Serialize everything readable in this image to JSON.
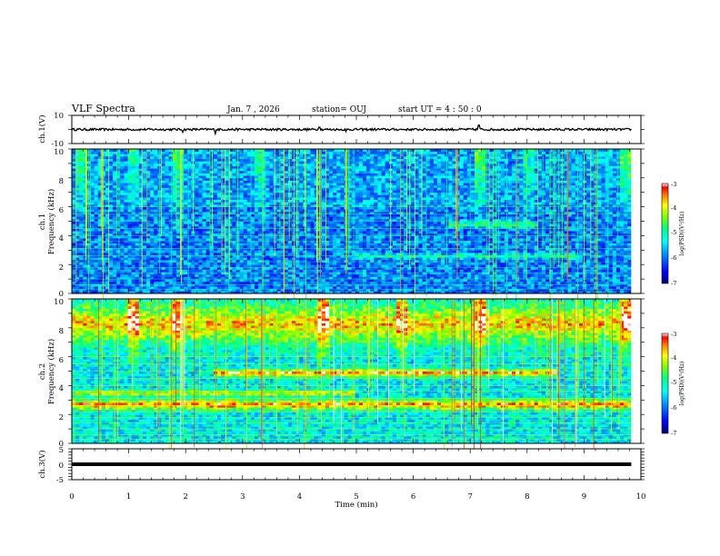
{
  "chart_data": {
    "type": "heatmap",
    "header": {
      "title": "VLF Spectra",
      "date": "Jan. 7 , 2026",
      "station": "station= OUJ",
      "start": "start UT = 4 : 50 : 0"
    },
    "xlabel": "Time (min)",
    "xlim": [
      0,
      10
    ],
    "xticks": [
      "0",
      "1",
      "2",
      "3",
      "4",
      "5",
      "6",
      "7",
      "8",
      "9",
      "10"
    ],
    "data_end_min": 9.83,
    "panels": [
      {
        "name": "ch1-waveform",
        "type": "line",
        "ylabel": "ch.1(V)",
        "ylim": [
          -10,
          10
        ],
        "yticks": [
          "10",
          "-10"
        ],
        "baseline": 0,
        "spikes": [
          {
            "t": 1.95,
            "v": -2
          },
          {
            "t": 2.52,
            "v": -3
          },
          {
            "t": 4.35,
            "v": 1.6
          },
          {
            "t": 4.82,
            "v": -1.5
          },
          {
            "t": 7.15,
            "v": 3
          }
        ]
      },
      {
        "name": "ch1-spectrogram",
        "type": "heatmap",
        "ylabel_line1": "ch.1",
        "ylabel_line2": "Frequency (kHz)",
        "ylim": [
          0,
          10
        ],
        "yticks": [
          "0",
          "2",
          "4",
          "6",
          "8",
          "10"
        ],
        "level": 0.15,
        "bands": [
          {
            "f": 2.6,
            "w": 0.25,
            "s": 0.12,
            "t0": 5,
            "t1": 9
          },
          {
            "f": 4.8,
            "w": 0.35,
            "s": 0.15,
            "t0": 6.6,
            "t1": 8.2
          }
        ],
        "bursts": [
          {
            "t": 0.15,
            "s": 0.25
          },
          {
            "t": 1.1,
            "s": 0.2
          },
          {
            "t": 1.85,
            "s": 0.25
          },
          {
            "t": 3.3,
            "s": 0.2
          },
          {
            "t": 7.15,
            "s": 0.3
          },
          {
            "t": 8.0,
            "s": 0.2
          },
          {
            "t": 9.75,
            "s": 0.3
          }
        ]
      },
      {
        "name": "ch2-spectrogram",
        "type": "heatmap",
        "ylabel_line1": "ch.2",
        "ylabel_line2": "Frequency (kHz)",
        "ylim": [
          0,
          10
        ],
        "yticks": [
          "0",
          "2",
          "4",
          "6",
          "8",
          "10"
        ],
        "level": 0.3,
        "bands": [
          {
            "f": 2.7,
            "w": 0.5,
            "s": 0.25,
            "t0": 0,
            "t1": 9.8
          },
          {
            "f": 3.5,
            "w": 0.3,
            "s": 0.2,
            "t0": 0,
            "t1": 5
          },
          {
            "f": 4.9,
            "w": 0.4,
            "s": 0.25,
            "t0": 2.5,
            "t1": 8.5
          },
          {
            "f": 8.3,
            "w": 1.7,
            "s": 0.18,
            "t0": 0,
            "t1": 9.8
          }
        ],
        "bursts": [
          {
            "t": 1.1,
            "s": 0.35
          },
          {
            "t": 1.85,
            "s": 0.3
          },
          {
            "t": 4.4,
            "s": 0.35
          },
          {
            "t": 5.8,
            "s": 0.3
          },
          {
            "t": 7.15,
            "s": 0.35
          },
          {
            "t": 9.75,
            "s": 0.35
          }
        ]
      },
      {
        "name": "ch3-waveform",
        "type": "line",
        "ylabel": "ch.3(V)",
        "ylim": [
          -5,
          5
        ],
        "yticks": [
          "5",
          "0",
          "-5"
        ],
        "baseline": 0
      }
    ],
    "colorbar": {
      "label": "log(PSD)(V²/Hz)",
      "range": [
        -7,
        -3
      ],
      "ticks": [
        "-3",
        "-4",
        "-5",
        "-6",
        "-7"
      ],
      "colors": [
        "#000080",
        "#0000ff",
        "#00a0ff",
        "#00ffff",
        "#00ff80",
        "#80ff00",
        "#ffff00",
        "#ff8000",
        "#ff0000",
        "#ffffff"
      ]
    }
  }
}
